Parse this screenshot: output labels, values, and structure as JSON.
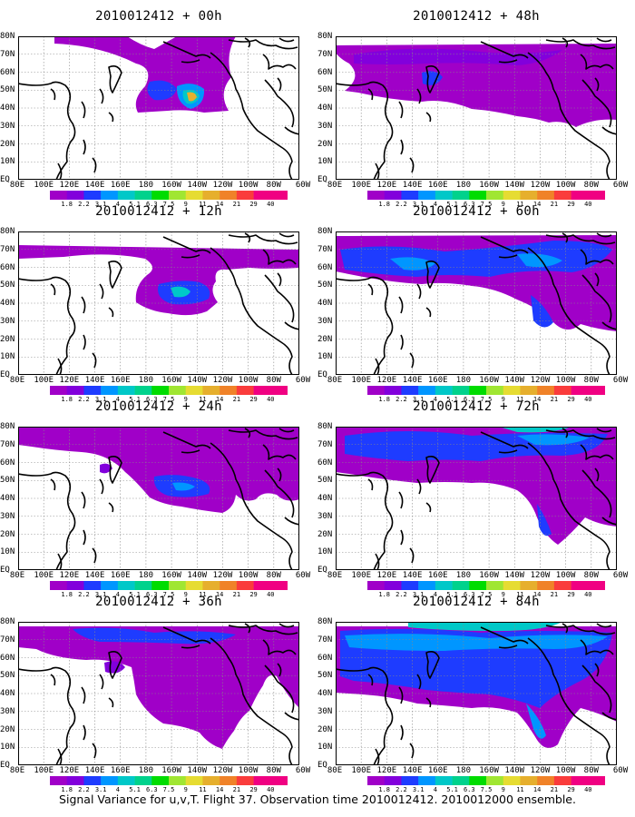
{
  "caption": "Signal Variance for u,v,T. Flight 37. Observation time 2010012412. 2010012000 ensemble.",
  "lat_labels": [
    "80N",
    "70N",
    "60N",
    "50N",
    "40N",
    "30N",
    "20N",
    "10N",
    "EQ"
  ],
  "lon_labels": [
    "80E",
    "100E",
    "120E",
    "140E",
    "160E",
    "180",
    "160W",
    "140W",
    "120W",
    "100W",
    "80W",
    "60W"
  ],
  "colorbar": {
    "labels": [
      "1.8",
      "2.2",
      "3.1",
      "4",
      "5.1",
      "6.3",
      "7.5",
      "9",
      "11",
      "14",
      "21",
      "29",
      "40"
    ],
    "colors": [
      "#a000c8",
      "#8200dc",
      "#1e3cff",
      "#0096ff",
      "#00c8c8",
      "#00d28c",
      "#00dc00",
      "#a0e632",
      "#e6dc32",
      "#e6af2d",
      "#f08228",
      "#fa3c3c",
      "#f00082"
    ]
  },
  "panels": [
    {
      "title": "2010012412 + 00h"
    },
    {
      "title": "2010012412 + 48h"
    },
    {
      "title": "2010012412 + 12h"
    },
    {
      "title": "2010012412 + 60h"
    },
    {
      "title": "2010012412 + 24h"
    },
    {
      "title": "2010012412 + 72h"
    },
    {
      "title": "2010012412 + 36h"
    },
    {
      "title": "2010012412 + 84h"
    }
  ]
}
